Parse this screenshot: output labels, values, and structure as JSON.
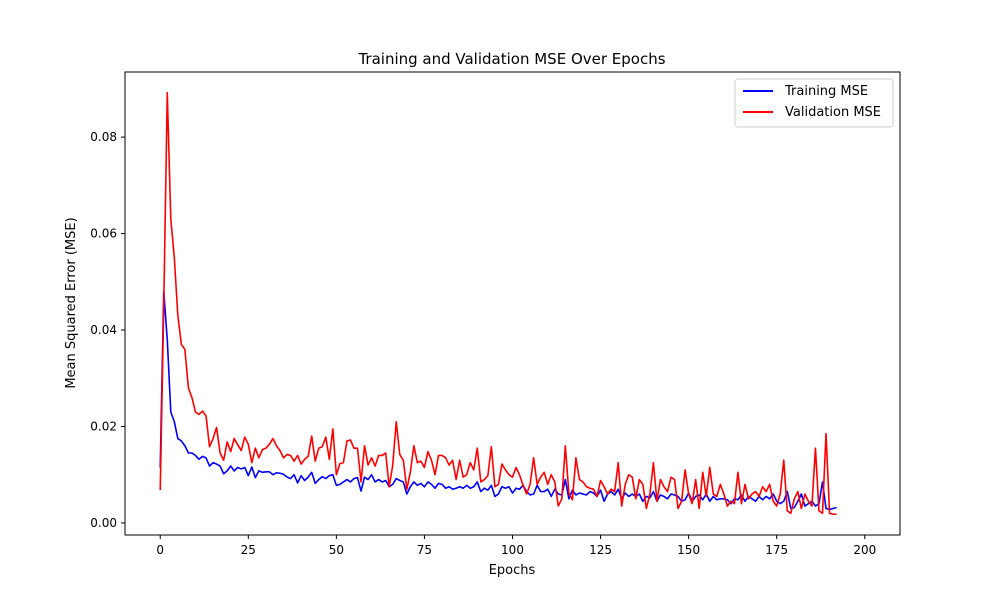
{
  "chart_data": {
    "type": "line",
    "title": "Training and Validation MSE Over Epochs",
    "xlabel": "Epochs",
    "ylabel": "Mean Squared Error (MSE)",
    "xlim": [
      -10,
      210
    ],
    "ylim": [
      -0.0025,
      0.0935
    ],
    "xticks": [
      0,
      25,
      50,
      75,
      100,
      125,
      150,
      175,
      200
    ],
    "yticks": [
      0.0,
      0.02,
      0.04,
      0.06,
      0.08
    ],
    "ytick_labels": [
      "0.00",
      "0.02",
      "0.04",
      "0.06",
      "0.08"
    ],
    "grid": false,
    "legend_position": "top-right",
    "series": [
      {
        "name": "Training MSE",
        "color": "#0000ff",
        "x_start": 0,
        "x_step": 1,
        "values": [
          0.0115,
          0.048,
          0.038,
          0.023,
          0.021,
          0.0175,
          0.017,
          0.016,
          0.0145,
          0.0145,
          0.014,
          0.0132,
          0.0138,
          0.0135,
          0.0118,
          0.0125,
          0.0122,
          0.0118,
          0.0102,
          0.0108,
          0.0118,
          0.0108,
          0.0115,
          0.0112,
          0.0115,
          0.0098,
          0.0116,
          0.0094,
          0.0108,
          0.0105,
          0.0106,
          0.0106,
          0.01,
          0.0104,
          0.0103,
          0.0101,
          0.0095,
          0.0092,
          0.01,
          0.0083,
          0.0098,
          0.0088,
          0.0095,
          0.0105,
          0.0082,
          0.009,
          0.0096,
          0.0092,
          0.0098,
          0.01,
          0.0078,
          0.008,
          0.0085,
          0.009,
          0.0085,
          0.0092,
          0.0094,
          0.0066,
          0.0095,
          0.009,
          0.01,
          0.0085,
          0.009,
          0.0085,
          0.0088,
          0.0075,
          0.008,
          0.0092,
          0.0088,
          0.0085,
          0.006,
          0.0075,
          0.0085,
          0.0078,
          0.0082,
          0.0075,
          0.0085,
          0.008,
          0.0072,
          0.0082,
          0.008,
          0.0072,
          0.0075,
          0.007,
          0.0072,
          0.0075,
          0.0072,
          0.0078,
          0.0072,
          0.0075,
          0.0085,
          0.0065,
          0.0072,
          0.0068,
          0.0078,
          0.0055,
          0.006,
          0.0075,
          0.0072,
          0.0075,
          0.0062,
          0.0072,
          0.007,
          0.0078,
          0.0065,
          0.0058,
          0.006,
          0.0078,
          0.0065,
          0.0065,
          0.007,
          0.0055,
          0.007,
          0.006,
          0.0058,
          0.009,
          0.005,
          0.0068,
          0.0058,
          0.0062,
          0.006,
          0.0058,
          0.0065,
          0.0062,
          0.0055,
          0.0068,
          0.0045,
          0.006,
          0.0065,
          0.0058,
          0.007,
          0.005,
          0.0062,
          0.0055,
          0.006,
          0.0055,
          0.006,
          0.0045,
          0.0055,
          0.0052,
          0.0065,
          0.0045,
          0.0058,
          0.0055,
          0.005,
          0.006,
          0.0058,
          0.0055,
          0.0045,
          0.0048,
          0.0062,
          0.0045,
          0.0055,
          0.0058,
          0.0048,
          0.006,
          0.0045,
          0.0055,
          0.0048,
          0.005,
          0.005,
          0.0048,
          0.004,
          0.005,
          0.0048,
          0.0058,
          0.0045,
          0.0055,
          0.005,
          0.0045,
          0.0055,
          0.0048,
          0.0055,
          0.005,
          0.006,
          0.0045,
          0.004,
          0.0045,
          0.0065,
          0.003,
          0.0032,
          0.0045,
          0.006,
          0.0035,
          0.004,
          0.0045,
          0.0035,
          0.004,
          0.0085,
          0.003,
          0.0028,
          0.003,
          0.0032
        ]
      },
      {
        "name": "Validation MSE",
        "color": "#ff0000",
        "x_start": 0,
        "x_step": 1,
        "values": [
          0.0068,
          0.045,
          0.0892,
          0.063,
          0.055,
          0.043,
          0.037,
          0.036,
          0.028,
          0.026,
          0.023,
          0.0225,
          0.0232,
          0.0222,
          0.0158,
          0.0175,
          0.0198,
          0.0145,
          0.013,
          0.0168,
          0.0148,
          0.0175,
          0.0162,
          0.015,
          0.0178,
          0.0163,
          0.0125,
          0.0155,
          0.0135,
          0.0152,
          0.0155,
          0.0163,
          0.0175,
          0.016,
          0.015,
          0.0135,
          0.0142,
          0.014,
          0.0128,
          0.014,
          0.0122,
          0.0132,
          0.0138,
          0.018,
          0.0128,
          0.0155,
          0.0158,
          0.0178,
          0.0132,
          0.0195,
          0.01,
          0.0123,
          0.0125,
          0.017,
          0.0172,
          0.0155,
          0.0155,
          0.0085,
          0.016,
          0.012,
          0.0135,
          0.0118,
          0.014,
          0.014,
          0.0145,
          0.0075,
          0.012,
          0.021,
          0.0142,
          0.013,
          0.007,
          0.0105,
          0.016,
          0.0125,
          0.0128,
          0.0115,
          0.0148,
          0.013,
          0.01,
          0.014,
          0.014,
          0.0135,
          0.012,
          0.013,
          0.009,
          0.013,
          0.0095,
          0.01,
          0.0125,
          0.011,
          0.0155,
          0.0085,
          0.009,
          0.0098,
          0.0158,
          0.0075,
          0.008,
          0.0122,
          0.011,
          0.01,
          0.0095,
          0.0115,
          0.01,
          0.0078,
          0.006,
          0.008,
          0.0135,
          0.008,
          0.0095,
          0.0105,
          0.008,
          0.01,
          0.0085,
          0.0035,
          0.005,
          0.016,
          0.0062,
          0.0048,
          0.0135,
          0.009,
          0.0085,
          0.0075,
          0.0072,
          0.007,
          0.0055,
          0.0088,
          0.0075,
          0.006,
          0.007,
          0.0065,
          0.0125,
          0.0035,
          0.008,
          0.01,
          0.0095,
          0.005,
          0.009,
          0.008,
          0.003,
          0.006,
          0.0125,
          0.0045,
          0.009,
          0.0075,
          0.0065,
          0.0095,
          0.009,
          0.003,
          0.0045,
          0.011,
          0.006,
          0.004,
          0.009,
          0.003,
          0.0105,
          0.0055,
          0.0115,
          0.006,
          0.0055,
          0.008,
          0.006,
          0.0035,
          0.0045,
          0.004,
          0.0105,
          0.004,
          0.008,
          0.005,
          0.006,
          0.0065,
          0.0055,
          0.0075,
          0.0065,
          0.008,
          0.0045,
          0.0035,
          0.006,
          0.013,
          0.0025,
          0.002,
          0.005,
          0.0065,
          0.003,
          0.006,
          0.0045,
          0.0035,
          0.0155,
          0.0025,
          0.002,
          0.0185,
          0.002,
          0.0018,
          0.0018
        ]
      }
    ]
  }
}
